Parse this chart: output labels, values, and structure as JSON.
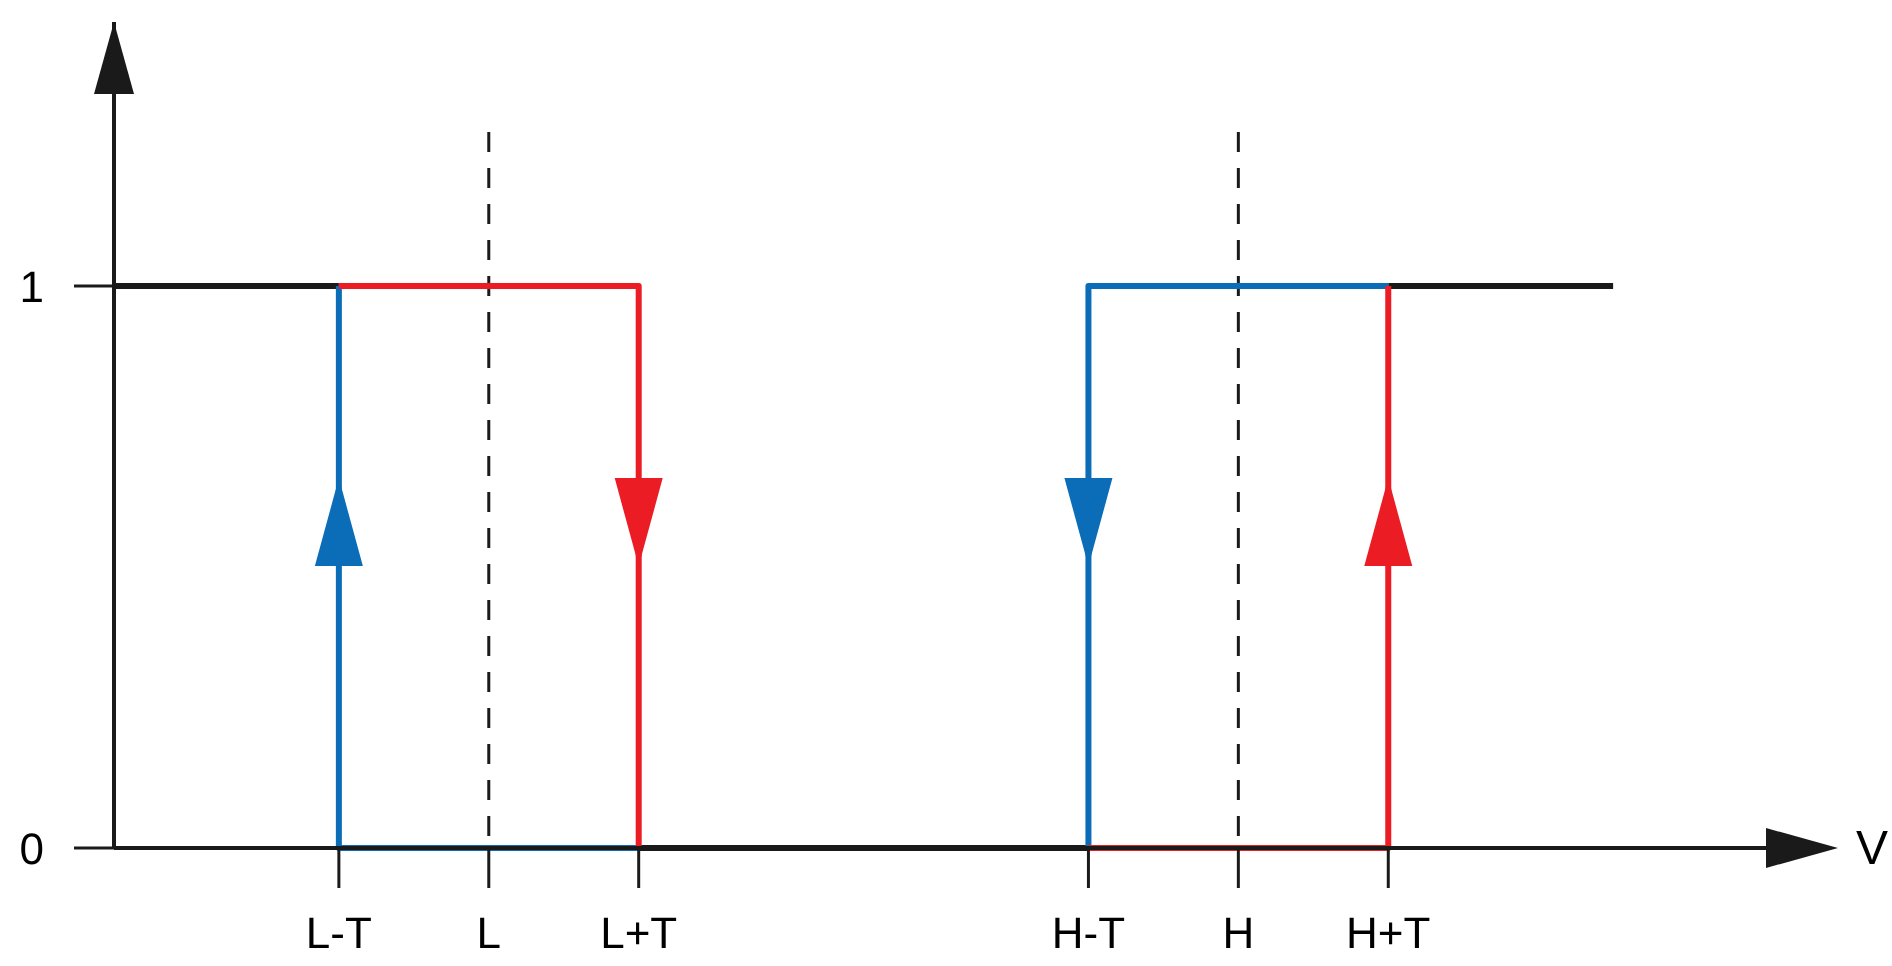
{
  "chart_data": {
    "type": "step",
    "xlabel": "V",
    "ylim": [
      0,
      1.47
    ],
    "yticks": [
      0,
      1
    ],
    "categories": [
      null,
      null,
      null,
      "L-T",
      null,
      "L",
      null,
      "L+T",
      null,
      null,
      null,
      null,
      null,
      "H-T",
      null,
      "H",
      null,
      "H+T",
      null,
      null,
      null,
      null,
      null,
      null
    ],
    "series": [
      {
        "color": "#1a1a1a",
        "values": [
          1,
          1,
          1,
          1,
          null,
          null,
          null,
          0,
          0,
          0,
          0,
          0,
          0,
          0,
          null,
          null,
          null,
          1,
          1,
          1,
          1,
          null,
          null,
          null
        ]
      },
      {
        "color": "#0b6db7",
        "values": [
          null,
          null,
          null,
          1,
          0,
          0,
          0,
          0,
          null,
          null,
          null,
          null,
          null,
          0,
          1,
          1,
          1,
          1,
          null,
          null,
          null,
          null,
          null,
          null
        ]
      },
      {
        "color": "#ec1c24",
        "values": [
          null,
          null,
          null,
          1,
          1,
          1,
          1,
          0,
          null,
          null,
          null,
          null,
          null,
          0,
          0,
          0,
          0,
          1,
          null,
          null,
          null,
          null,
          null,
          null
        ]
      }
    ],
    "ref_lines": [
      {
        "axis": "x",
        "value": "L",
        "color": "#1a1a1a",
        "line_style": "dashed"
      },
      {
        "axis": "x",
        "value": "H",
        "color": "#1a1a1a",
        "line_style": "dashed"
      }
    ],
    "grid": false,
    "marker": "none",
    "line_style": "solid"
  }
}
